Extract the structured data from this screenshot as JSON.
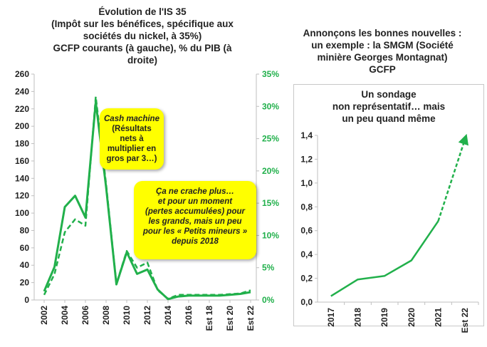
{
  "left_panel": {
    "title_lines": [
      "Évolution de l'IS 35",
      "(Impôt sur les bénéfices, spécifique aux",
      "sociétés du nickel, à 35%)",
      "GCFP courants (à gauche), % du PIB (à",
      "droite)"
    ],
    "callout_1": {
      "line1": "Cash machine",
      "rest": "(Résultats nets à multiplier en gros par 3…)"
    },
    "callout_2": {
      "lines": [
        "Ça ne crache plus…",
        "et pour un moment",
        "(pertes accumulées) pour",
        "les grands, mais un peu",
        "pour les « Petits mineurs »",
        "depuis 2018"
      ]
    }
  },
  "right_panel": {
    "title_lines": [
      "Annonçons les bonnes nouvelles :",
      "un exemple : la SMGM (Société",
      "minière Georges Montagnat)",
      "GCFP"
    ],
    "subtitle_lines": [
      "Un sondage",
      "non représentatif… mais",
      "un peu quand même"
    ]
  },
  "colors": {
    "line": "#21b04b",
    "callout": "#ffff00",
    "axis_right": "#21b04b"
  },
  "chart_data": [
    {
      "type": "line",
      "title": "Évolution de l'IS 35",
      "x_tick_labels": [
        "2002",
        "2004",
        "2006",
        "2008",
        "2010",
        "2012",
        "2014",
        "2016",
        "Est 18",
        "Est 20",
        "Est 22"
      ],
      "x_index_range": [
        2002,
        2022
      ],
      "ylim_left": [
        0,
        260
      ],
      "yticks_left": [
        "0",
        "20",
        "40",
        "60",
        "80",
        "100",
        "120",
        "140",
        "160",
        "180",
        "200",
        "220",
        "240",
        "260"
      ],
      "ylim_right": [
        0,
        35
      ],
      "yticks_right": [
        "0%",
        "5%",
        "10%",
        "15%",
        "20%",
        "25%",
        "30%",
        "35%"
      ],
      "grid": false,
      "series": [
        {
          "style": "solid",
          "axis": "left",
          "x": [
            2002,
            2003,
            2004,
            2005,
            2006,
            2007,
            2008,
            2009,
            2010,
            2011,
            2012,
            2013,
            2014,
            2015,
            2016,
            2017,
            2018,
            2019,
            2020,
            2021,
            2022
          ],
          "values": [
            10,
            38,
            107,
            120,
            95,
            228,
            130,
            18,
            55,
            30,
            35,
            12,
            1,
            4,
            5,
            5,
            5,
            5,
            6,
            7,
            9
          ]
        },
        {
          "style": "dashed",
          "axis": "right",
          "x": [
            2002,
            2003,
            2004,
            2005,
            2006,
            2007,
            2008,
            2009,
            2010,
            2011,
            2012,
            2013,
            2014,
            2015,
            2016,
            2017,
            2018,
            2019,
            2020,
            2021,
            2022
          ],
          "values": [
            0.8,
            4.0,
            10.5,
            12.5,
            11.5,
            31.5,
            18.0,
            2.5,
            7.6,
            5.0,
            5.8,
            1.5,
            0.2,
            0.8,
            0.8,
            0.8,
            0.8,
            0.8,
            0.9,
            1.0,
            1.5
          ]
        }
      ]
    },
    {
      "type": "line",
      "title": "Un sondage non représentatif… mais un peu quand même",
      "categories": [
        "2017",
        "2018",
        "2019",
        "2020",
        "2021",
        "Est 22"
      ],
      "ylim": [
        0,
        1.4
      ],
      "yticks": [
        "0,0",
        "0,2",
        "0,4",
        "0,6",
        "0,8",
        "1,0",
        "1,2",
        "1,4"
      ],
      "grid": false,
      "series": [
        {
          "style": "solid",
          "values": [
            0.05,
            0.19,
            0.22,
            0.35,
            0.68,
            null
          ]
        },
        {
          "style": "dashed",
          "values": [
            null,
            null,
            null,
            null,
            0.68,
            1.37
          ]
        }
      ]
    }
  ]
}
